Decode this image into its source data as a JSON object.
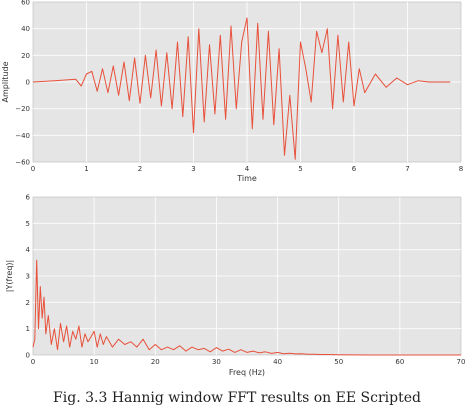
{
  "caption": "Fig. 3.3 Hannig window FFT results on EE Scripted",
  "colors": {
    "plot_bg": "#e5e5e5",
    "grid": "#ffffff",
    "line": "#e8503a",
    "frame": "#bbbbbb"
  },
  "chart_data": [
    {
      "type": "line",
      "xlabel": "Time",
      "ylabel": "Amplitude",
      "xlim": [
        0,
        8
      ],
      "ylim": [
        -60,
        60
      ],
      "xticks": [
        "0",
        "1",
        "2",
        "3",
        "4",
        "5",
        "6",
        "7",
        "8"
      ],
      "yticks": [
        "60",
        "40",
        "20",
        "0",
        "−20",
        "−40",
        "−60"
      ],
      "grid": true,
      "series": [
        {
          "x": [
            0.0,
            0.4,
            0.8,
            0.9,
            1.0,
            1.1,
            1.2,
            1.3,
            1.4,
            1.5,
            1.6,
            1.7,
            1.8,
            1.9,
            2.0,
            2.1,
            2.2,
            2.3,
            2.4,
            2.5,
            2.6,
            2.7,
            2.8,
            2.9,
            3.0,
            3.1,
            3.2,
            3.3,
            3.4,
            3.5,
            3.6,
            3.7,
            3.8,
            3.9,
            4.0,
            4.1,
            4.2,
            4.3,
            4.4,
            4.5,
            4.6,
            4.7,
            4.8,
            4.9,
            5.0,
            5.1,
            5.2,
            5.3,
            5.4,
            5.5,
            5.6,
            5.7,
            5.8,
            5.9,
            6.0,
            6.1,
            6.2,
            6.4,
            6.6,
            6.8,
            7.0,
            7.2,
            7.4,
            7.6,
            7.8
          ],
          "values": [
            0,
            1,
            2,
            -3,
            6,
            8,
            -7,
            10,
            -8,
            12,
            -10,
            15,
            -14,
            18,
            -16,
            20,
            -12,
            24,
            -18,
            22,
            -20,
            30,
            -26,
            34,
            -38,
            40,
            -30,
            28,
            -24,
            35,
            -28,
            42,
            -20,
            30,
            48,
            -35,
            44,
            -28,
            38,
            -32,
            25,
            -55,
            -10,
            -58,
            30,
            10,
            -15,
            38,
            22,
            40,
            -20,
            35,
            -15,
            30,
            -18,
            10,
            -8,
            6,
            -4,
            3,
            -2,
            1,
            0,
            0,
            0
          ]
        }
      ]
    },
    {
      "type": "line",
      "xlabel": "Freq (Hz)",
      "ylabel": "|Y(freq)|",
      "xlim": [
        0,
        70
      ],
      "ylim": [
        0,
        6
      ],
      "xticks": [
        "0",
        "10",
        "20",
        "30",
        "40",
        "50",
        "60",
        "70"
      ],
      "yticks": [
        "6",
        "5",
        "4",
        "3",
        "2",
        "1",
        "0"
      ],
      "grid": true,
      "series": [
        {
          "x": [
            0.0,
            0.3,
            0.6,
            0.9,
            1.2,
            1.5,
            1.8,
            2.1,
            2.5,
            3.0,
            3.5,
            4.0,
            4.5,
            5.0,
            5.5,
            6.0,
            6.5,
            7.0,
            7.5,
            8.0,
            8.5,
            9.0,
            9.5,
            10.0,
            10.5,
            11.0,
            11.5,
            12.0,
            13.0,
            14.0,
            15.0,
            16.0,
            17.0,
            18.0,
            19.0,
            20.0,
            21.0,
            22.0,
            23.0,
            24.0,
            25.0,
            26.0,
            27.0,
            28.0,
            29.0,
            30.0,
            31.0,
            32.0,
            33.0,
            34.0,
            35.0,
            36.0,
            37.0,
            38.0,
            39.0,
            40.0,
            41.0,
            42.0,
            43.0,
            44.0,
            45.0,
            46.0,
            47.0,
            48.0,
            50.0,
            55.0,
            60.0,
            65.0,
            70.0
          ],
          "values": [
            0.3,
            0.6,
            3.6,
            1.0,
            2.6,
            1.4,
            2.2,
            0.8,
            1.5,
            0.4,
            1.0,
            0.2,
            1.2,
            0.5,
            1.1,
            0.3,
            0.9,
            0.6,
            1.1,
            0.3,
            0.8,
            0.5,
            0.7,
            0.9,
            0.3,
            0.8,
            0.4,
            0.7,
            0.3,
            0.6,
            0.4,
            0.5,
            0.3,
            0.6,
            0.2,
            0.4,
            0.2,
            0.3,
            0.2,
            0.35,
            0.15,
            0.3,
            0.2,
            0.25,
            0.12,
            0.28,
            0.15,
            0.22,
            0.1,
            0.2,
            0.1,
            0.15,
            0.08,
            0.12,
            0.06,
            0.1,
            0.05,
            0.07,
            0.04,
            0.05,
            0.03,
            0.03,
            0.02,
            0.02,
            0.01,
            0.0,
            0.0,
            0.0,
            0.0
          ]
        }
      ]
    }
  ]
}
